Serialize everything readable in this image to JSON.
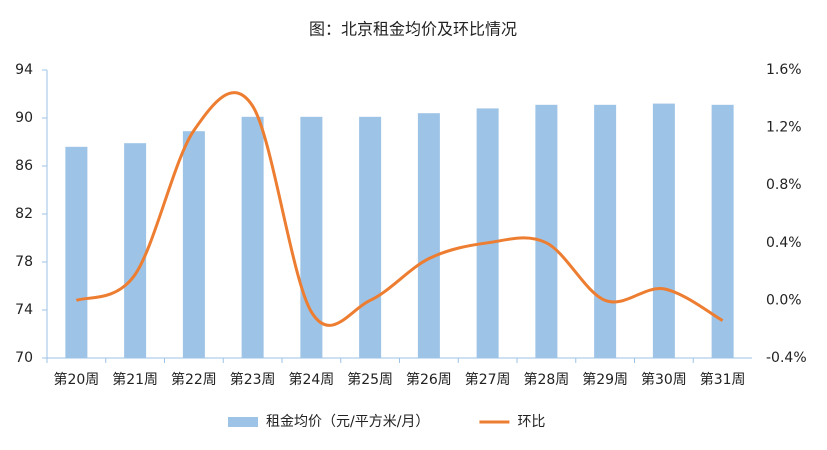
{
  "chart_data": {
    "type": "bar",
    "title": "图：北京租金均价及环比情况",
    "categories": [
      "第20周",
      "第21周",
      "第22周",
      "第23周",
      "第24周",
      "第25周",
      "第26周",
      "第27周",
      "第28周",
      "第29周",
      "第30周",
      "第31周"
    ],
    "series": [
      {
        "name": "租金均价（元/平方米/月）",
        "color": "#9dc3e6",
        "values": [
          87.6,
          87.9,
          88.9,
          90.1,
          90.1,
          90.1,
          90.4,
          90.8,
          91.1,
          91.1,
          91.2,
          91.1
        ]
      },
      {
        "name": "环比",
        "type": "line",
        "axis": "y2",
        "color": "#ed7d31",
        "values": [
          0.0,
          0.18,
          1.18,
          1.35,
          -0.08,
          0.0,
          0.29,
          0.4,
          0.4,
          0.0,
          0.08,
          -0.14
        ]
      }
    ],
    "ylim": [
      70,
      94
    ],
    "yticks": [
      70,
      74,
      78,
      82,
      86,
      90,
      94
    ],
    "y2lim": [
      -0.4,
      1.6
    ],
    "y2ticks": [
      {
        "value": -0.4,
        "label": "-0.4%"
      },
      {
        "value": 0.0,
        "label": "0.0%"
      },
      {
        "value": 0.4,
        "label": "0.4%"
      },
      {
        "value": 0.8,
        "label": "0.8%"
      },
      {
        "value": 1.2,
        "label": "1.2%"
      },
      {
        "value": 1.6,
        "label": "1.6%"
      }
    ],
    "grid": false,
    "legend": "bottom"
  }
}
